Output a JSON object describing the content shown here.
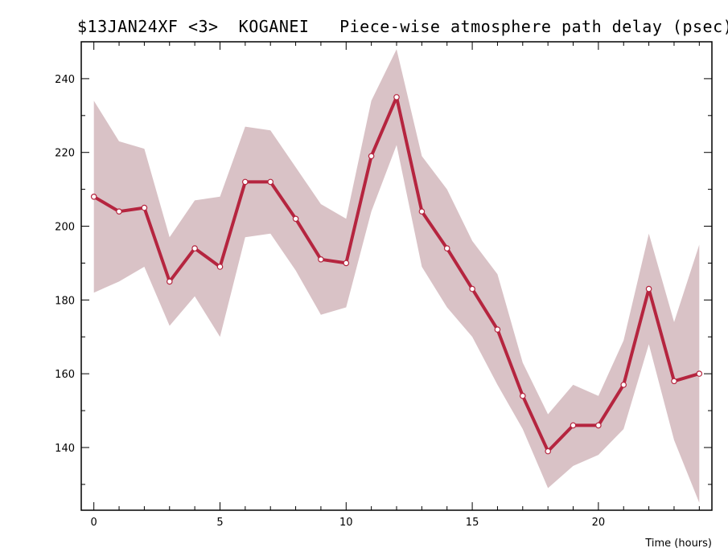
{
  "chart_data": {
    "type": "line",
    "title": "$13JAN24XF <3>  KOGANEI   Piece-wise atmosphere path delay (psec)",
    "xlabel": "Time (hours)",
    "ylabel": "",
    "xlim": [
      -0.5,
      24.5
    ],
    "ylim": [
      123,
      250
    ],
    "x_ticks": [
      0,
      5,
      10,
      15,
      20
    ],
    "y_ticks": [
      140,
      160,
      180,
      200,
      220,
      240
    ],
    "grid": false,
    "line_color": "#b5253f",
    "band_color": "#d9c2c6",
    "series": [
      {
        "x": [
          0,
          1,
          2,
          3,
          4,
          5,
          6,
          7,
          8,
          9,
          10,
          11,
          12,
          13,
          14,
          15,
          16,
          17,
          18,
          19,
          20,
          21,
          22,
          23,
          24
        ],
        "values": [
          208,
          204,
          205,
          185,
          194,
          189,
          212,
          212,
          202,
          191,
          190,
          219,
          235,
          204,
          194,
          183,
          172,
          154,
          139,
          146,
          146,
          157,
          183,
          158,
          160
        ],
        "upper": [
          234,
          223,
          221,
          197,
          207,
          208,
          227,
          226,
          216,
          206,
          202,
          234,
          248,
          219,
          210,
          196,
          187,
          163,
          149,
          157,
          154,
          169,
          198,
          174,
          195
        ],
        "lower": [
          182,
          185,
          189,
          173,
          181,
          170,
          197,
          198,
          188,
          176,
          178,
          204,
          222,
          189,
          178,
          170,
          157,
          145,
          129,
          135,
          138,
          145,
          168,
          142,
          125
        ]
      }
    ]
  }
}
